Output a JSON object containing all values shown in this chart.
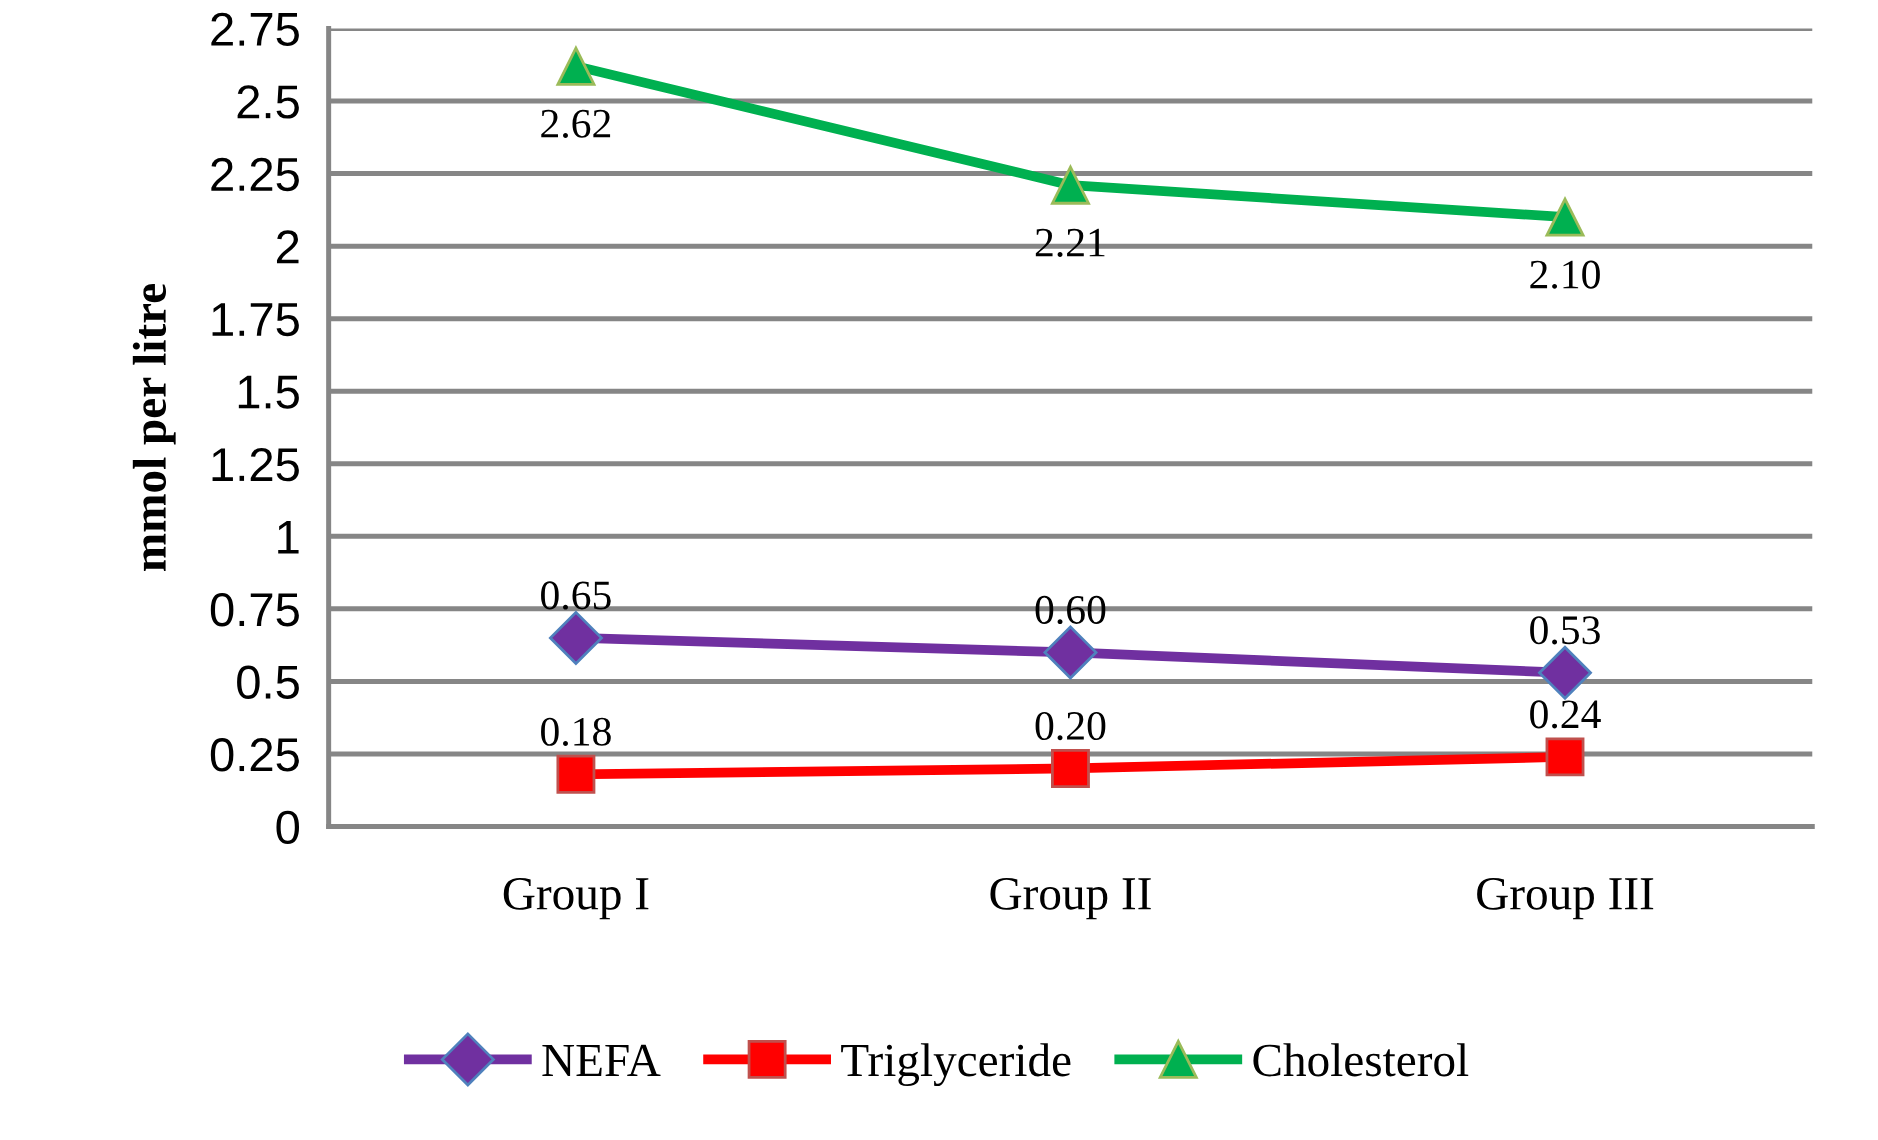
{
  "chart_data": {
    "type": "line",
    "ylabel": "mmol per litre",
    "categories": [
      "Group I",
      "Group II",
      "Group III"
    ],
    "series": [
      {
        "name": "NEFA",
        "color": "#7030a0",
        "marker": "diamond",
        "values": [
          0.65,
          0.6,
          0.53
        ],
        "value_labels": [
          "0.65",
          "0.60",
          "0.53"
        ]
      },
      {
        "name": "Triglyceride",
        "color": "#ff0000",
        "marker": "square",
        "values": [
          0.18,
          0.2,
          0.24
        ],
        "value_labels": [
          "0.18",
          "0.20",
          "0.24"
        ]
      },
      {
        "name": "Cholesterol",
        "color": "#00b050",
        "marker": "triangle",
        "values": [
          2.62,
          2.21,
          2.1
        ],
        "value_labels": [
          "2.62",
          "2.21",
          "2.10"
        ]
      }
    ],
    "ylim": [
      0,
      2.75
    ],
    "yticks": [
      0,
      0.25,
      0.5,
      0.75,
      1,
      1.25,
      1.5,
      1.75,
      2,
      2.25,
      2.5,
      2.75
    ],
    "grid": "y",
    "legend": "bottom",
    "line_style": "solid"
  }
}
